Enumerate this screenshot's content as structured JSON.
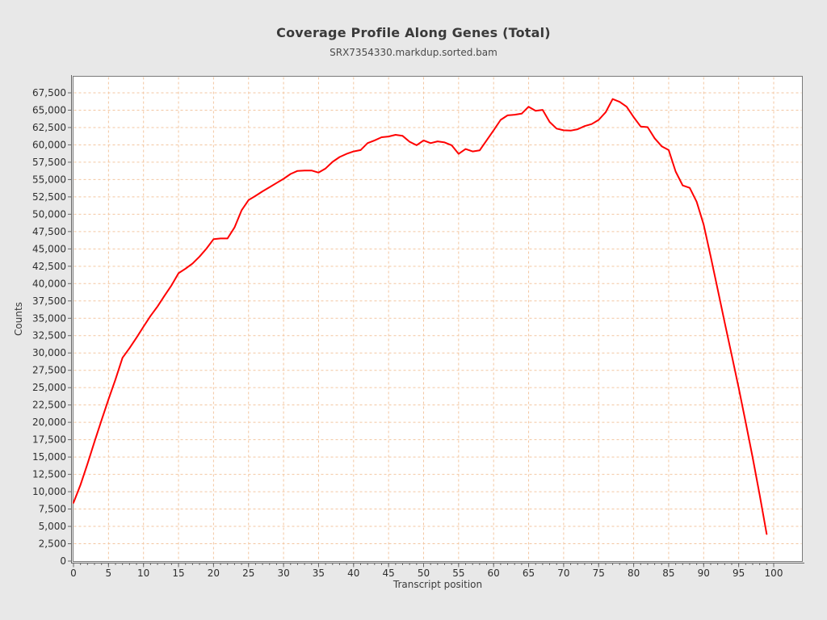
{
  "header": {
    "title": "Coverage Profile Along Genes (Total)",
    "subtitle": "SRX7354330.markdup.sorted.bam"
  },
  "chart_data": {
    "type": "line",
    "title": "Coverage Profile Along Genes (Total)",
    "subtitle": "SRX7354330.markdup.sorted.bam",
    "xlabel": "Transcript position",
    "ylabel": "Counts",
    "x_range": [
      0,
      100
    ],
    "y_range": [
      0,
      67500
    ],
    "x_tick_step": 5,
    "x_minor_tick_step": 1,
    "y_tick_step": 2500,
    "grid": true,
    "grid_style": "dashed",
    "legend": "none",
    "series": [
      {
        "name": "SRX7354330.markdup.sorted.bam",
        "x_start": 0,
        "x_step": 1,
        "values": [
          8400,
          11000,
          14000,
          17200,
          20300,
          23300,
          26200,
          29300,
          30700,
          32200,
          33800,
          35350,
          36700,
          38250,
          39750,
          41500,
          42150,
          42900,
          43900,
          45050,
          46400,
          46500,
          46500,
          48100,
          50550,
          52050,
          52650,
          53300,
          53900,
          54500,
          55100,
          55800,
          56250,
          56300,
          56300,
          56000,
          56600,
          57550,
          58250,
          58700,
          59050,
          59250,
          60250,
          60650,
          61100,
          61200,
          61450,
          61300,
          60450,
          59950,
          60650,
          60250,
          60500,
          60350,
          59950,
          58700,
          59400,
          59050,
          59200,
          60650,
          62100,
          63600,
          64250,
          64350,
          64500,
          65500,
          64900,
          65050,
          63300,
          62350,
          62100,
          62050,
          62250,
          62700,
          63000,
          63600,
          64700,
          66600,
          66200,
          65500,
          64000,
          62650,
          62550,
          60950,
          59800,
          59250,
          56150,
          54150,
          53800,
          51800,
          48500,
          43900,
          39200,
          34400,
          29700,
          25000,
          20000,
          14900,
          9500,
          3900
        ]
      }
    ],
    "colors": {
      "line": "#ff0000",
      "grid": "#f3c6a0",
      "plot_background": "#ffffff",
      "page_background": "#e8e8e8",
      "plot_border": "#7a7a7a",
      "axis": "#666666",
      "text": "#3b3b3b"
    }
  }
}
